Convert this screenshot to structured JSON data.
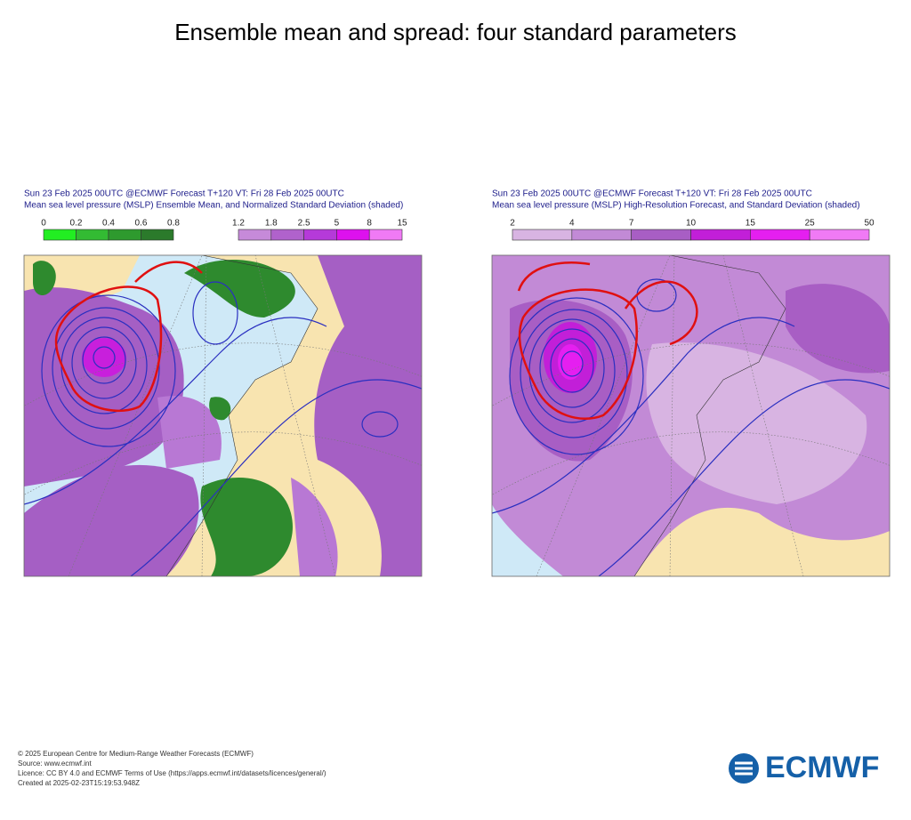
{
  "title": "Ensemble mean and spread: four standard parameters",
  "panels": [
    {
      "line1": "Sun 23 Feb 2025 00UTC @ECMWF Forecast T+120 VT: Fri 28 Feb 2025 00UTC",
      "line2": "Mean sea level pressure (MSLP) Ensemble Mean, and Normalized Standard Deviation (shaded)",
      "legends": [
        {
          "levels": [
            0,
            0.2,
            0.4,
            0.6,
            0.8
          ],
          "colors": [
            "#22ee22",
            "#33bb33",
            "#2e9a2e",
            "#2b7a2b"
          ]
        },
        {
          "levels": [
            1.2,
            1.8,
            2.5,
            5,
            8,
            15
          ],
          "colors": [
            "#c68ad9",
            "#b062cc",
            "#b53ad9",
            "#dd11ee",
            "#f07af5"
          ]
        }
      ]
    },
    {
      "line1": "Sun 23 Feb 2025 00UTC @ECMWF Forecast T+120 VT: Fri 28 Feb 2025 00UTC",
      "line2": "Mean sea level pressure (MSLP) High-Resolution Forecast, and Standard Deviation (shaded)",
      "legends": [
        {
          "levels": [
            2,
            4,
            7,
            10,
            15,
            25,
            50
          ],
          "colors": [
            "#d8b4e2",
            "#c28ad6",
            "#a85ec4",
            "#c21fd8",
            "#e51ff0",
            "#f07af5"
          ]
        }
      ]
    }
  ],
  "footer": [
    "© 2025 European Centre for Medium-Range Weather Forecasts (ECMWF)",
    "Source: www.ecmwf.int",
    "Licence: CC BY 4.0 and ECMWF Terms of Use (https://apps.ecmwf.int/datasets/licences/general/)",
    "Created at 2025-02-23T15:19:53.948Z"
  ],
  "logo": "ECMWF"
}
